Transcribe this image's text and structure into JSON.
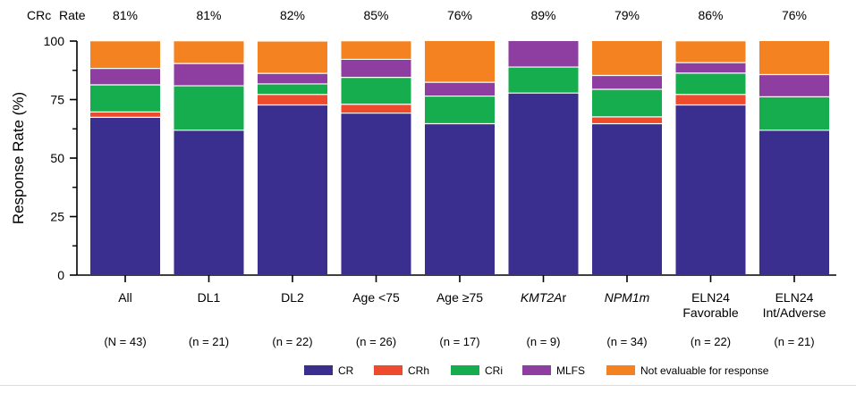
{
  "chart_data": {
    "type": "bar",
    "stacked": true,
    "crc_header": {
      "label1": "CRc",
      "label2": "Rate"
    },
    "ylabel": "Response Rate (%)",
    "xlabel": "",
    "ylim": [
      0,
      100
    ],
    "yticks": [
      "0",
      "25",
      "50",
      "75",
      "100"
    ],
    "categories": [
      {
        "line1": "All",
        "line2": "",
        "italic": false,
        "n": "(N = 43)",
        "crc": "81%"
      },
      {
        "line1": "DL1",
        "line2": "",
        "italic": false,
        "n": "(n = 21)",
        "crc": "81%"
      },
      {
        "line1": "DL2",
        "line2": "",
        "italic": false,
        "n": "(n = 22)",
        "crc": "82%"
      },
      {
        "line1": "Age <75",
        "line2": "",
        "italic": false,
        "n": "(n = 26)",
        "crc": "85%"
      },
      {
        "line1": "Age ≥75",
        "line2": "",
        "italic": false,
        "n": "(n = 17)",
        "crc": "76%"
      },
      {
        "line1": "KMT2A",
        "line1_suffix": "r",
        "line2": "",
        "italic": true,
        "n": "(n = 9)",
        "crc": "89%"
      },
      {
        "line1": "NPM1m",
        "line2": "",
        "italic": true,
        "n": "(n = 34)",
        "crc": "79%"
      },
      {
        "line1": "ELN24",
        "line2": "Favorable",
        "italic": false,
        "n": "(n = 22)",
        "crc": "86%"
      },
      {
        "line1": "ELN24",
        "line2": "Int/Adverse",
        "italic": false,
        "n": "(n = 21)",
        "crc": "76%"
      }
    ],
    "series": [
      {
        "name": "CR",
        "color": "#3a2e8f",
        "values": [
          67.4,
          61.9,
          72.7,
          69.2,
          64.7,
          77.8,
          64.7,
          72.7,
          61.9
        ]
      },
      {
        "name": "CRh",
        "color": "#ee4a2d",
        "values": [
          2.3,
          0,
          4.5,
          3.8,
          0,
          0,
          2.9,
          4.5,
          0
        ]
      },
      {
        "name": "CRi",
        "color": "#16ad4e",
        "values": [
          11.6,
          19.0,
          4.5,
          11.5,
          11.8,
          11.1,
          11.8,
          9.1,
          14.3
        ]
      },
      {
        "name": "MLFS",
        "color": "#8d3ea0",
        "values": [
          7.0,
          9.5,
          4.5,
          7.7,
          5.9,
          11.1,
          5.9,
          4.5,
          9.5
        ]
      },
      {
        "name": "Not evaluable for response",
        "color": "#f58220",
        "values": [
          11.6,
          9.5,
          13.6,
          7.7,
          17.6,
          0,
          14.7,
          9.1,
          14.3
        ]
      }
    ]
  }
}
